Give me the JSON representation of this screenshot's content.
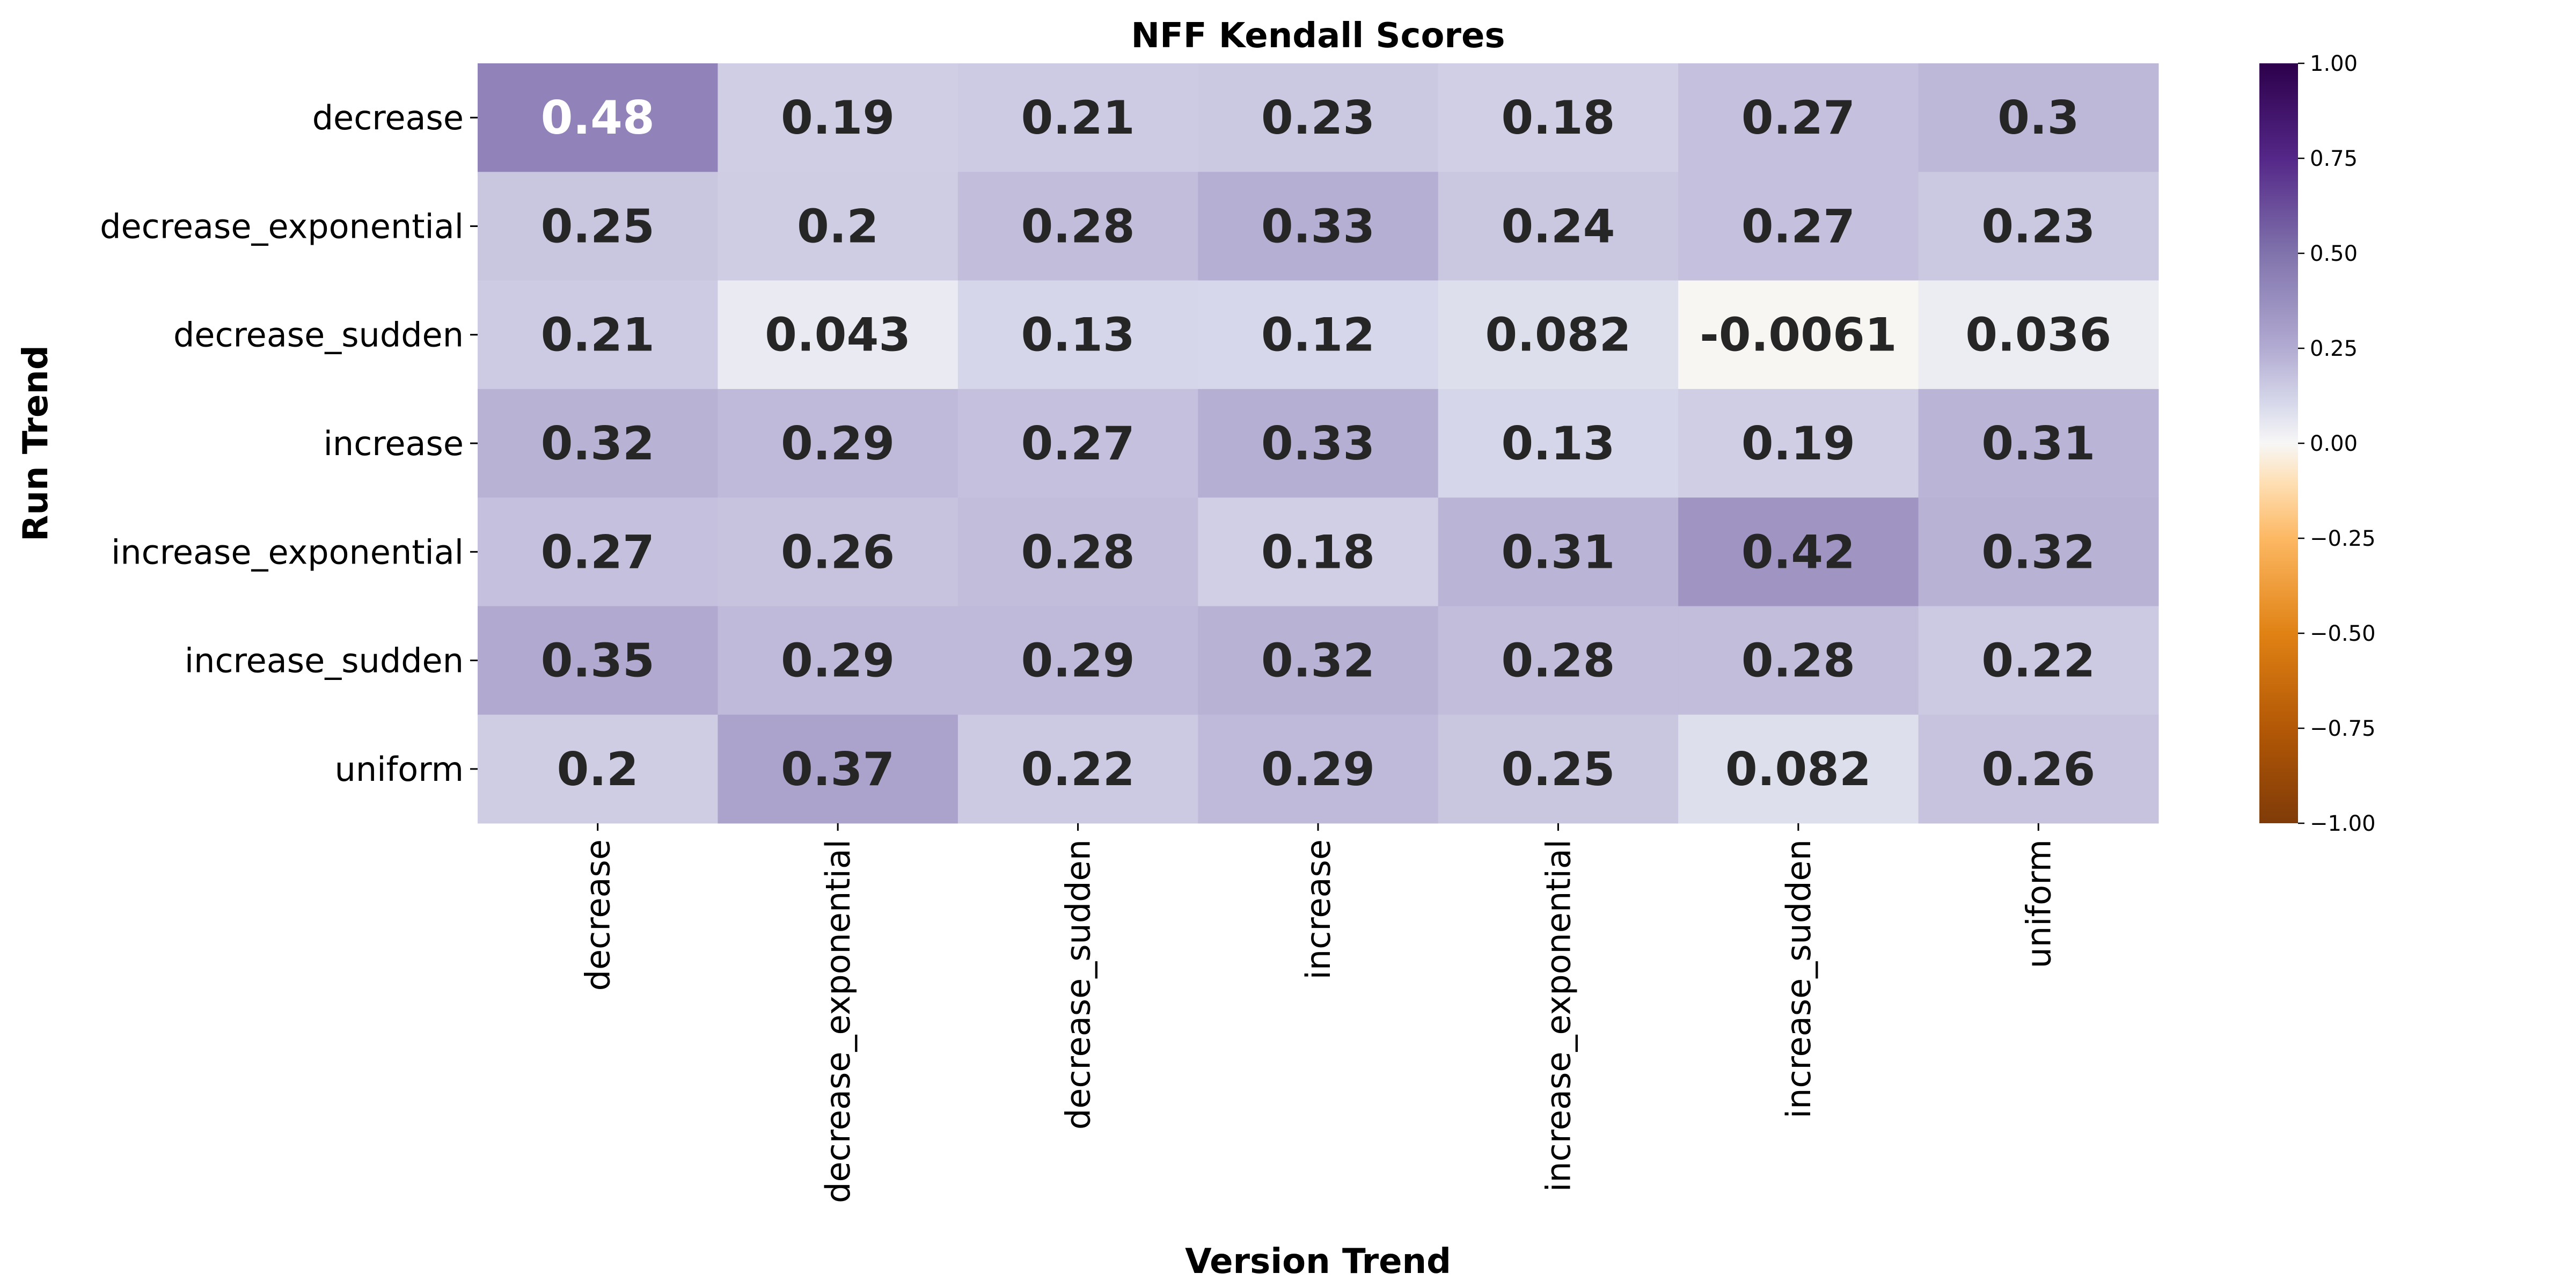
{
  "chart_data": {
    "type": "heatmap",
    "title": "NFF Kendall Scores",
    "xlabel": "Version Trend",
    "ylabel": "Run Trend",
    "x_categories": [
      "decrease",
      "decrease_exponential",
      "decrease_sudden",
      "increase",
      "increase_exponential",
      "increase_sudden",
      "uniform"
    ],
    "y_categories": [
      "decrease",
      "decrease_exponential",
      "decrease_sudden",
      "increase",
      "increase_exponential",
      "increase_sudden",
      "uniform"
    ],
    "values": [
      [
        0.48,
        0.19,
        0.21,
        0.23,
        0.18,
        0.27,
        0.3
      ],
      [
        0.25,
        0.2,
        0.28,
        0.33,
        0.24,
        0.27,
        0.23
      ],
      [
        0.21,
        0.043,
        0.13,
        0.12,
        0.082,
        -0.0061,
        0.036
      ],
      [
        0.32,
        0.29,
        0.27,
        0.33,
        0.13,
        0.19,
        0.31
      ],
      [
        0.27,
        0.26,
        0.28,
        0.18,
        0.31,
        0.42,
        0.32
      ],
      [
        0.35,
        0.29,
        0.29,
        0.32,
        0.28,
        0.28,
        0.22
      ],
      [
        0.2,
        0.37,
        0.22,
        0.29,
        0.25,
        0.082,
        0.26
      ]
    ],
    "value_labels": [
      [
        "0.48",
        "0.19",
        "0.21",
        "0.23",
        "0.18",
        "0.27",
        "0.3"
      ],
      [
        "0.25",
        "0.2",
        "0.28",
        "0.33",
        "0.24",
        "0.27",
        "0.23"
      ],
      [
        "0.21",
        "0.043",
        "0.13",
        "0.12",
        "0.082",
        "-0.0061",
        "0.036"
      ],
      [
        "0.32",
        "0.29",
        "0.27",
        "0.33",
        "0.13",
        "0.19",
        "0.31"
      ],
      [
        "0.27",
        "0.26",
        "0.28",
        "0.18",
        "0.31",
        "0.42",
        "0.32"
      ],
      [
        "0.35",
        "0.29",
        "0.29",
        "0.32",
        "0.28",
        "0.28",
        "0.22"
      ],
      [
        "0.2",
        "0.37",
        "0.22",
        "0.29",
        "0.25",
        "0.082",
        "0.26"
      ]
    ],
    "colormap": "PuOr",
    "vmin": -1,
    "vmax": 1,
    "colorbar_ticks": [
      1,
      0.75,
      0.5,
      0.25,
      0,
      -0.25,
      -0.5,
      -0.75,
      -1
    ],
    "colorbar_tick_labels": [
      "1.00",
      "0.75",
      "0.50",
      "0.25",
      "0.00",
      "−0.25",
      "−0.50",
      "−0.75",
      "−1.00"
    ],
    "colors": {
      "low": "#7f3b08",
      "mid": "#f7f7f7",
      "high": "#2d004b",
      "text_dark": "#262626",
      "text_light": "#ffffff"
    }
  }
}
